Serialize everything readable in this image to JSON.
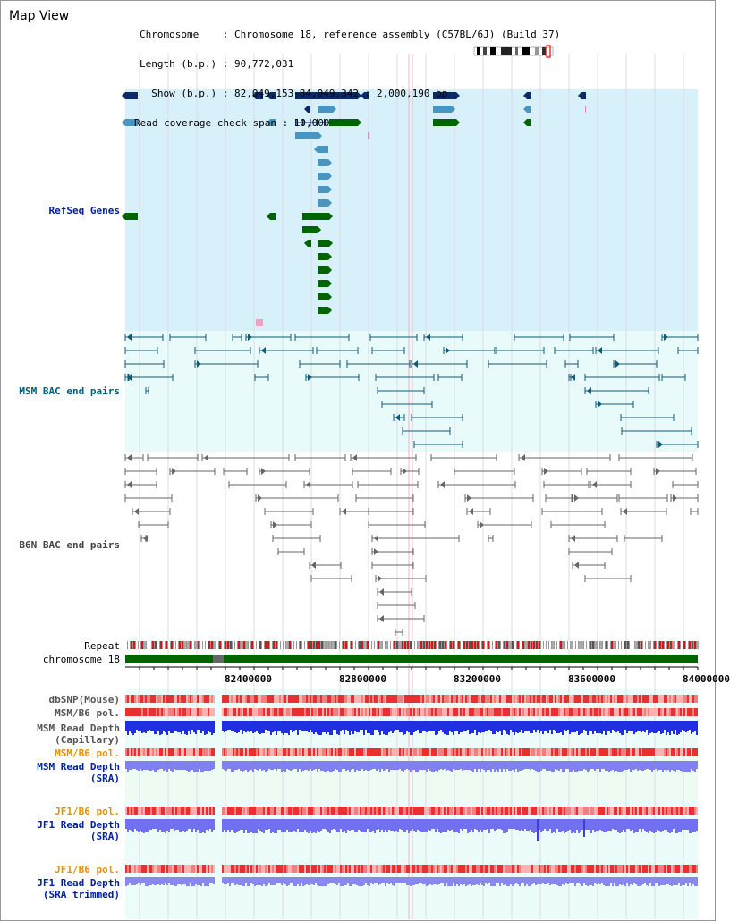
{
  "title": "Map View",
  "info": {
    "line1": "Chromosome    : Chromosome 18, reference assembly (C57BL/6J) (Build 37)",
    "line2": "Length (b.p.) : 90,772,031",
    "line3": "  Show (b.p.) : 82,049,153-84,049,342 : 2,000,190 bp",
    "line4": "Read coverage check span : 10,000"
  },
  "tracks": {
    "refseq": "RefSeq Genes",
    "msm_bac": "MSM BAC end pairs",
    "b6n_bac": "B6N BAC end pairs",
    "repeat": "Repeat",
    "chromosome": "chromosome 18",
    "dbsnp": "dbSNP(Mouse)",
    "msm_pol": "MSM/B6 pol.",
    "msm_depth_cap": "MSM Read Depth\n(Capillary)",
    "msm_pol2": "MSM/B6 pol.",
    "msm_depth_sra": "MSM Read Depth\n(SRA)",
    "jf1_pol": "JF1/B6 pol.",
    "jf1_depth_sra": "JF1 Read Depth\n(SRA)",
    "jf1_pol2": "JF1/B6 pol.",
    "jf1_depth_trim": "JF1 Read Depth\n(SRA trimmed)"
  },
  "axis": {
    "ticks": [
      "82400000",
      "82800000",
      "83200000",
      "83600000",
      "84000000"
    ]
  },
  "colors": {
    "refseq_bg": "#d8f0fa",
    "msm_bg": "#e8fafa",
    "gene_navy": "#0a2a6a",
    "gene_blue": "#4a94c0",
    "gene_green": "#006400",
    "bac_teal": "#105a78",
    "bac_gray": "#666666",
    "chrom_green": "#006400",
    "snp_red": "#e83030",
    "depth_blue": "#2030e0",
    "depth_light": "#7070f0"
  }
}
